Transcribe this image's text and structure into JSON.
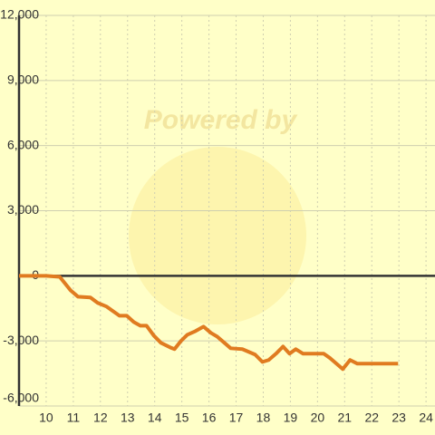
{
  "chart_data": {
    "type": "line",
    "watermark": "Powered by",
    "x": [
      9,
      10,
      10.5,
      10.9,
      11.17,
      11.63,
      11.9,
      12.23,
      12.7,
      12.97,
      13.23,
      13.47,
      13.7,
      13.97,
      14.23,
      14.57,
      14.73,
      14.97,
      15.2,
      15.5,
      15.8,
      16.07,
      16.3,
      16.57,
      16.8,
      17.23,
      17.7,
      17.97,
      18.2,
      18.47,
      18.73,
      18.97,
      19.2,
      19.47,
      20.23,
      20.47,
      20.93,
      21.2,
      21.47,
      22.97
    ],
    "series": [
      {
        "color": "#e07b20",
        "values": [
          0,
          0,
          -50,
          -670,
          -960,
          -1000,
          -1250,
          -1420,
          -1840,
          -1840,
          -2130,
          -2300,
          -2300,
          -2760,
          -3090,
          -3300,
          -3380,
          -3000,
          -2720,
          -2550,
          -2340,
          -2630,
          -2800,
          -3090,
          -3340,
          -3380,
          -3630,
          -3970,
          -3880,
          -3590,
          -3260,
          -3590,
          -3380,
          -3590,
          -3590,
          -3800,
          -4300,
          -3880,
          -4050,
          -4050
        ]
      }
    ],
    "xlim": [
      9,
      24.33
    ],
    "xticks": [
      10,
      11,
      12,
      13,
      14,
      15,
      16,
      17,
      18,
      19,
      20,
      21,
      22,
      23,
      24
    ],
    "ylim": [
      -6000,
      12000
    ],
    "yticks": [
      {
        "value": -6000,
        "label": "-6,000"
      },
      {
        "value": -3000,
        "label": "-3,000"
      },
      0,
      {
        "value": 3000,
        "label": "3,000"
      },
      {
        "value": 6000,
        "label": "6,000"
      },
      {
        "value": 9000,
        "label": "9,000"
      },
      {
        "value": 12000,
        "label": "12,000"
      }
    ],
    "grid": true
  }
}
